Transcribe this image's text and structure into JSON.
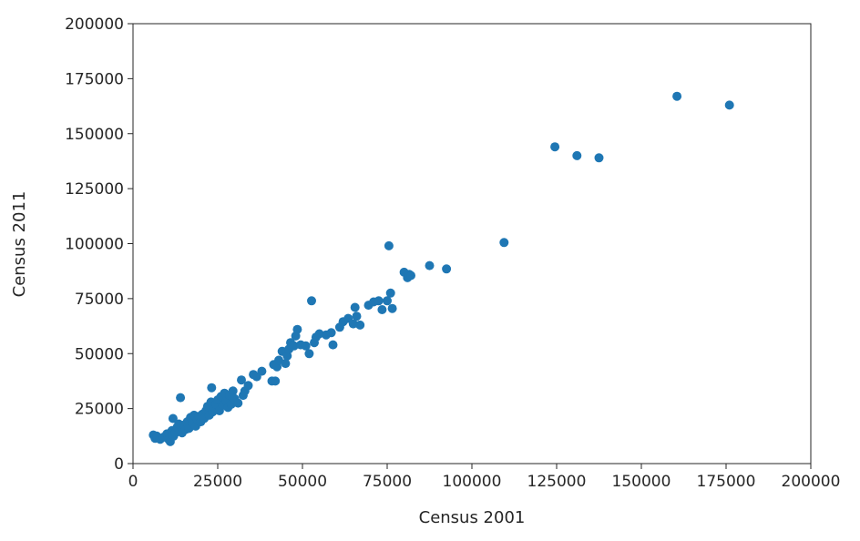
{
  "chart_data": {
    "type": "scatter",
    "xlabel": "Census 2001",
    "ylabel": "Census 2011",
    "xlim": [
      0,
      200000
    ],
    "ylim": [
      0,
      200000
    ],
    "x_ticks": [
      "0",
      "25000",
      "50000",
      "75000",
      "100000",
      "125000",
      "150000",
      "175000",
      "200000"
    ],
    "y_ticks": [
      "0",
      "25000",
      "50000",
      "75000",
      "100000",
      "125000",
      "150000",
      "175000",
      "200000"
    ],
    "grid": false,
    "colors": {
      "points": "#1f77b4",
      "axes": "#262626"
    },
    "points": [
      [
        6000,
        13000
      ],
      [
        6500,
        11500
      ],
      [
        7000,
        12500
      ],
      [
        8000,
        11000
      ],
      [
        9000,
        12000
      ],
      [
        10000,
        13500
      ],
      [
        10500,
        11000
      ],
      [
        11000,
        10000
      ],
      [
        11500,
        15000
      ],
      [
        11800,
        20500
      ],
      [
        12000,
        12500
      ],
      [
        12500,
        14000
      ],
      [
        13000,
        16500
      ],
      [
        13500,
        18000
      ],
      [
        14000,
        30000
      ],
      [
        14500,
        14000
      ],
      [
        15000,
        17500
      ],
      [
        15500,
        15500
      ],
      [
        16000,
        19000
      ],
      [
        16500,
        16000
      ],
      [
        17000,
        21000
      ],
      [
        17500,
        18500
      ],
      [
        18000,
        22000
      ],
      [
        18500,
        17000
      ],
      [
        19000,
        20000
      ],
      [
        19500,
        21500
      ],
      [
        20000,
        19000
      ],
      [
        20500,
        22500
      ],
      [
        21000,
        20500
      ],
      [
        21500,
        24000
      ],
      [
        22000,
        26000
      ],
      [
        22500,
        22000
      ],
      [
        23000,
        28000
      ],
      [
        23200,
        34500
      ],
      [
        23500,
        23500
      ],
      [
        24000,
        25500
      ],
      [
        24500,
        27000
      ],
      [
        25000,
        29000
      ],
      [
        25500,
        24000
      ],
      [
        26000,
        30500
      ],
      [
        26500,
        26500
      ],
      [
        27000,
        32000
      ],
      [
        27500,
        28500
      ],
      [
        28000,
        25500
      ],
      [
        28500,
        31000
      ],
      [
        29000,
        27000
      ],
      [
        29500,
        33000
      ],
      [
        30000,
        29500
      ],
      [
        31000,
        27500
      ],
      [
        32000,
        38000
      ],
      [
        32500,
        31000
      ],
      [
        33000,
        33000
      ],
      [
        34000,
        35500
      ],
      [
        35500,
        40500
      ],
      [
        36500,
        39500
      ],
      [
        38000,
        42000
      ],
      [
        41000,
        37500
      ],
      [
        41500,
        45000
      ],
      [
        42000,
        37500
      ],
      [
        42500,
        44000
      ],
      [
        43000,
        47000
      ],
      [
        44000,
        51000
      ],
      [
        45000,
        45500
      ],
      [
        45500,
        49000
      ],
      [
        46000,
        52000
      ],
      [
        46500,
        55000
      ],
      [
        47500,
        53500
      ],
      [
        48000,
        58000
      ],
      [
        48500,
        61000
      ],
      [
        49500,
        54000
      ],
      [
        51000,
        53500
      ],
      [
        52000,
        50000
      ],
      [
        52700,
        74000
      ],
      [
        53500,
        55000
      ],
      [
        54000,
        57500
      ],
      [
        55000,
        59000
      ],
      [
        57000,
        58500
      ],
      [
        58500,
        59500
      ],
      [
        59000,
        54000
      ],
      [
        61000,
        62000
      ],
      [
        62000,
        64500
      ],
      [
        63500,
        66000
      ],
      [
        65000,
        63500
      ],
      [
        65500,
        71000
      ],
      [
        66000,
        67000
      ],
      [
        67000,
        63000
      ],
      [
        69500,
        72000
      ],
      [
        71000,
        73500
      ],
      [
        72500,
        74000
      ],
      [
        73500,
        70000
      ],
      [
        75000,
        74000
      ],
      [
        75500,
        99000
      ],
      [
        76000,
        77500
      ],
      [
        76500,
        70500
      ],
      [
        80000,
        87000
      ],
      [
        81000,
        84500
      ],
      [
        81500,
        86000
      ],
      [
        82000,
        85500
      ],
      [
        87500,
        90000
      ],
      [
        92500,
        88500
      ],
      [
        109500,
        100500
      ],
      [
        124500,
        144000
      ],
      [
        131000,
        140000
      ],
      [
        137500,
        139000
      ],
      [
        160500,
        167000
      ],
      [
        176000,
        163000
      ]
    ]
  }
}
